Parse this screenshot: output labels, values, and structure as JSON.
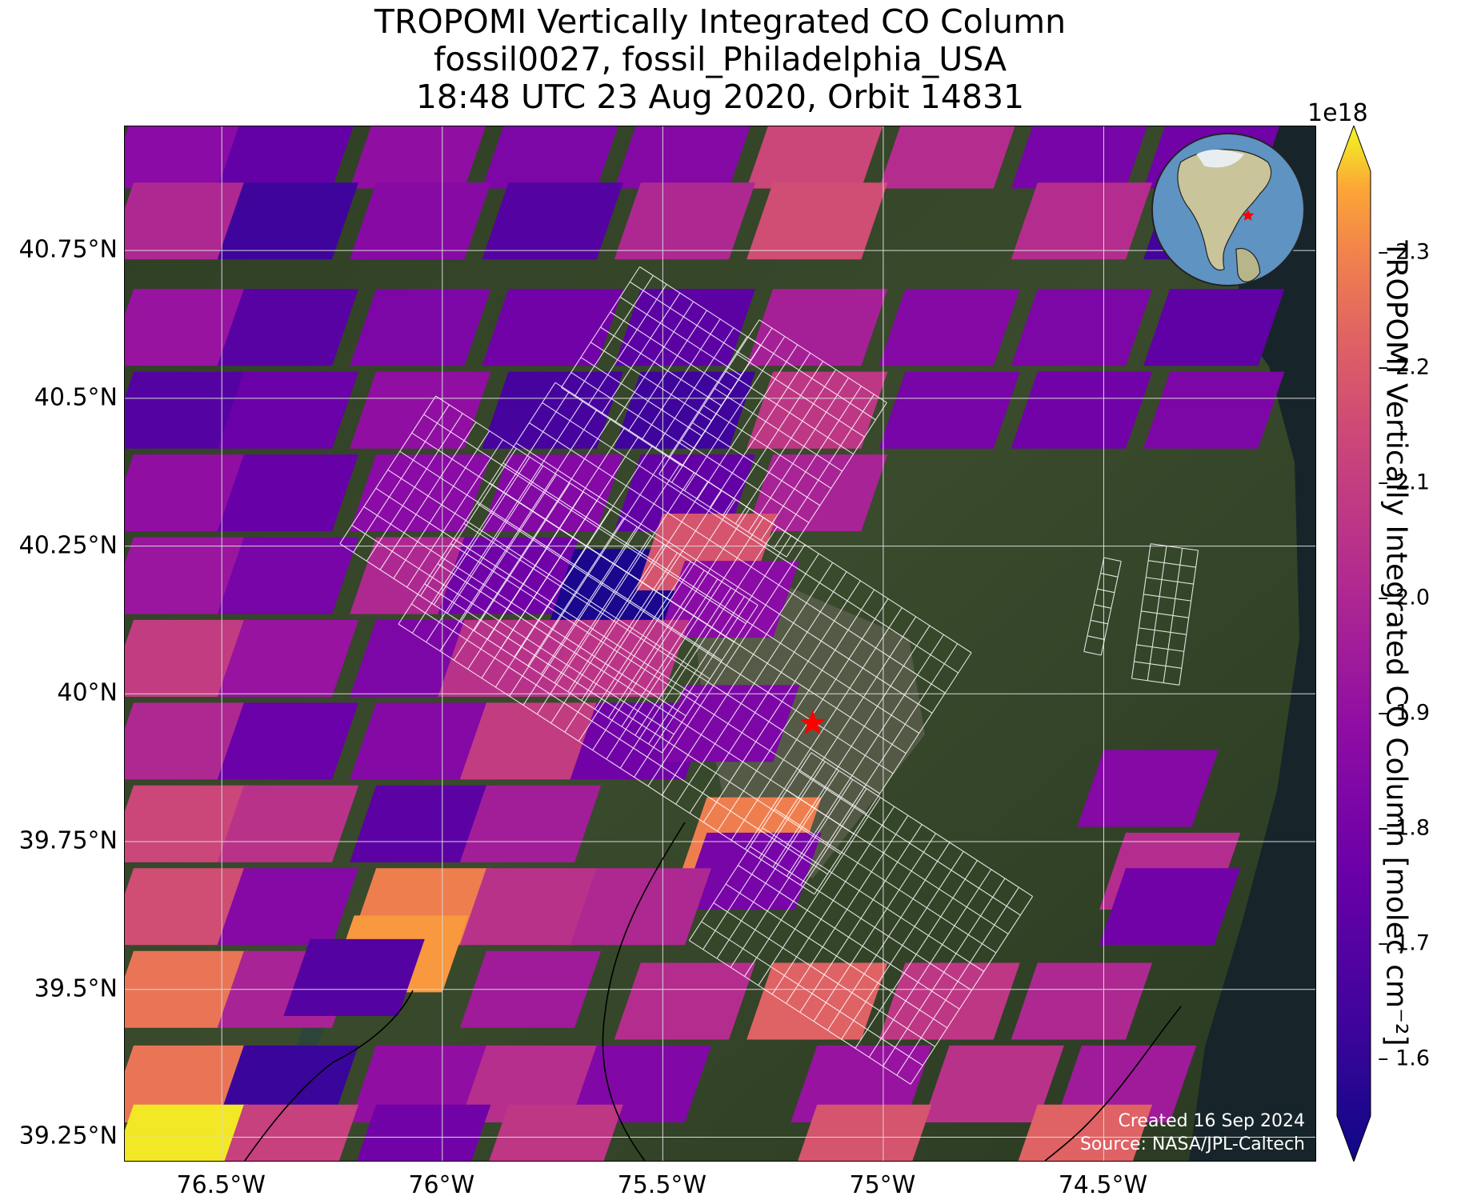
{
  "title": {
    "line1": "TROPOMI Vertically Integrated CO Column",
    "line2": "fossil0027, fossil_Philadelphia_USA",
    "line3": "18:48 UTC 23 Aug 2020, Orbit 14831"
  },
  "map": {
    "lat_ticks": [
      "40.75°N",
      "40.5°N",
      "40.25°N",
      "40°N",
      "39.75°N",
      "39.5°N",
      "39.25°N"
    ],
    "lon_ticks": [
      "76.5°W",
      "76°W",
      "75.5°W",
      "75°W",
      "74.5°W"
    ],
    "extent": {
      "lon_min": -76.72,
      "lon_max": -74.02,
      "lat_min": 39.21,
      "lat_max": 40.96
    },
    "target_marker": {
      "name": "fossil_Philadelphia_USA",
      "lon": -75.16,
      "lat": 39.95,
      "color": "#ff0000"
    },
    "grid": true,
    "basemap": "satellite imagery",
    "credit_line1": "Created 16 Sep 2024",
    "credit_line2": "Source: NASA/JPL-Caltech",
    "globe_inset": {
      "marker_color": "#ff0000",
      "content": "globe centered on North America with target star"
    }
  },
  "colorbar": {
    "exponent": "1e18",
    "label": "TROPOMI Vertically Integrated CO Column [molec cm⁻²]",
    "ticks": [
      "2.3",
      "2.2",
      "2.1",
      "2.0",
      "1.9",
      "1.8",
      "1.7",
      "1.6"
    ],
    "tick_values": [
      2.3,
      2.2,
      2.1,
      2.0,
      1.9,
      1.8,
      1.7,
      1.6
    ],
    "min": 1.55,
    "max": 2.37,
    "colormap": "plasma",
    "extend": "both"
  },
  "chart_data": {
    "type": "heatmap",
    "title": "TROPOMI Vertically Integrated CO Column",
    "subtitle": [
      "fossil0027, fossil_Philadelphia_USA",
      "18:48 UTC 23 Aug 2020, Orbit 14831"
    ],
    "xlabel": "",
    "ylabel": "",
    "x_ticks": [
      "76.5°W",
      "76°W",
      "75.5°W",
      "75°W",
      "74.5°W"
    ],
    "y_ticks": [
      "40.75°N",
      "40.5°N",
      "40.25°N",
      "40°N",
      "39.75°N",
      "39.5°N",
      "39.25°N"
    ],
    "xlim": [
      -76.72,
      -74.02
    ],
    "ylim": [
      39.21,
      40.96
    ],
    "color_range": [
      1.55,
      2.37
    ],
    "units": "molec cm⁻² ×1e18",
    "cells": [
      {
        "lon": -76.6,
        "lat": 40.92,
        "value": 1.88
      },
      {
        "lon": -76.35,
        "lat": 40.92,
        "value": 1.76
      },
      {
        "lon": -76.05,
        "lat": 40.92,
        "value": 1.9
      },
      {
        "lon": -75.75,
        "lat": 40.92,
        "value": 1.84
      },
      {
        "lon": -75.45,
        "lat": 40.92,
        "value": 1.86
      },
      {
        "lon": -75.15,
        "lat": 40.92,
        "value": 2.12
      },
      {
        "lon": -74.85,
        "lat": 40.92,
        "value": 2.02
      },
      {
        "lon": -74.55,
        "lat": 40.92,
        "value": 1.82
      },
      {
        "lon": -74.25,
        "lat": 40.92,
        "value": 1.8
      },
      {
        "lon": -76.6,
        "lat": 40.8,
        "value": 2.0
      },
      {
        "lon": -76.35,
        "lat": 40.8,
        "value": 1.66
      },
      {
        "lon": -76.05,
        "lat": 40.8,
        "value": 1.87
      },
      {
        "lon": -75.75,
        "lat": 40.8,
        "value": 1.72
      },
      {
        "lon": -75.45,
        "lat": 40.8,
        "value": 2.0
      },
      {
        "lon": -75.15,
        "lat": 40.8,
        "value": 2.14
      },
      {
        "lon": -74.55,
        "lat": 40.8,
        "value": 2.02
      },
      {
        "lon": -74.25,
        "lat": 40.8,
        "value": 1.67
      },
      {
        "lon": -76.6,
        "lat": 40.62,
        "value": 1.92
      },
      {
        "lon": -76.35,
        "lat": 40.62,
        "value": 1.73
      },
      {
        "lon": -76.05,
        "lat": 40.62,
        "value": 1.84
      },
      {
        "lon": -75.75,
        "lat": 40.62,
        "value": 1.8
      },
      {
        "lon": -75.45,
        "lat": 40.62,
        "value": 1.74
      },
      {
        "lon": -75.15,
        "lat": 40.62,
        "value": 1.97
      },
      {
        "lon": -74.85,
        "lat": 40.62,
        "value": 1.86
      },
      {
        "lon": -74.55,
        "lat": 40.62,
        "value": 1.84
      },
      {
        "lon": -74.25,
        "lat": 40.62,
        "value": 1.75
      },
      {
        "lon": -76.6,
        "lat": 40.48,
        "value": 1.72
      },
      {
        "lon": -76.35,
        "lat": 40.48,
        "value": 1.78
      },
      {
        "lon": -76.05,
        "lat": 40.48,
        "value": 1.9
      },
      {
        "lon": -75.75,
        "lat": 40.48,
        "value": 1.68
      },
      {
        "lon": -75.45,
        "lat": 40.48,
        "value": 1.66
      },
      {
        "lon": -75.15,
        "lat": 40.48,
        "value": 2.06
      },
      {
        "lon": -74.85,
        "lat": 40.48,
        "value": 1.82
      },
      {
        "lon": -74.55,
        "lat": 40.48,
        "value": 1.8
      },
      {
        "lon": -74.25,
        "lat": 40.48,
        "value": 1.84
      },
      {
        "lon": -76.6,
        "lat": 40.34,
        "value": 1.9
      },
      {
        "lon": -76.35,
        "lat": 40.34,
        "value": 1.77
      },
      {
        "lon": -76.05,
        "lat": 40.34,
        "value": 1.88
      },
      {
        "lon": -75.75,
        "lat": 40.34,
        "value": 1.86
      },
      {
        "lon": -75.45,
        "lat": 40.34,
        "value": 1.76
      },
      {
        "lon": -75.15,
        "lat": 40.34,
        "value": 1.98
      },
      {
        "lon": -76.6,
        "lat": 40.2,
        "value": 1.93
      },
      {
        "lon": -76.35,
        "lat": 40.2,
        "value": 1.82
      },
      {
        "lon": -76.05,
        "lat": 40.2,
        "value": 2.0
      },
      {
        "lon": -75.85,
        "lat": 40.2,
        "value": 1.8
      },
      {
        "lon": -75.6,
        "lat": 40.18,
        "value": 1.58
      },
      {
        "lon": -75.4,
        "lat": 40.24,
        "value": 2.16
      },
      {
        "lon": -75.35,
        "lat": 40.16,
        "value": 1.88
      },
      {
        "lon": -76.6,
        "lat": 40.06,
        "value": 2.08
      },
      {
        "lon": -76.35,
        "lat": 40.06,
        "value": 1.92
      },
      {
        "lon": -76.05,
        "lat": 40.06,
        "value": 1.84
      },
      {
        "lon": -75.85,
        "lat": 40.06,
        "value": 2.04
      },
      {
        "lon": -75.6,
        "lat": 40.06,
        "value": 2.05
      },
      {
        "lon": -76.6,
        "lat": 39.92,
        "value": 2.0
      },
      {
        "lon": -76.35,
        "lat": 39.92,
        "value": 1.78
      },
      {
        "lon": -76.05,
        "lat": 39.92,
        "value": 1.86
      },
      {
        "lon": -75.8,
        "lat": 39.92,
        "value": 2.08
      },
      {
        "lon": -75.55,
        "lat": 39.92,
        "value": 1.8
      },
      {
        "lon": -75.35,
        "lat": 39.95,
        "value": 1.84
      },
      {
        "lon": -76.6,
        "lat": 39.78,
        "value": 2.12
      },
      {
        "lon": -76.35,
        "lat": 39.78,
        "value": 2.04
      },
      {
        "lon": -76.05,
        "lat": 39.78,
        "value": 1.74
      },
      {
        "lon": -75.8,
        "lat": 39.78,
        "value": 1.96
      },
      {
        "lon": -75.3,
        "lat": 39.76,
        "value": 2.26
      },
      {
        "lon": -75.3,
        "lat": 39.7,
        "value": 1.82
      },
      {
        "lon": -76.6,
        "lat": 39.64,
        "value": 2.14
      },
      {
        "lon": -76.35,
        "lat": 39.64,
        "value": 1.86
      },
      {
        "lon": -76.05,
        "lat": 39.64,
        "value": 2.26
      },
      {
        "lon": -75.8,
        "lat": 39.64,
        "value": 2.04
      },
      {
        "lon": -75.55,
        "lat": 39.64,
        "value": 2.0
      },
      {
        "lon": -76.6,
        "lat": 39.5,
        "value": 2.24
      },
      {
        "lon": -76.35,
        "lat": 39.5,
        "value": 1.98
      },
      {
        "lon": -76.1,
        "lat": 39.56,
        "value": 2.3
      },
      {
        "lon": -76.2,
        "lat": 39.52,
        "value": 1.72
      },
      {
        "lon": -75.8,
        "lat": 39.5,
        "value": 1.95
      },
      {
        "lon": -75.45,
        "lat": 39.48,
        "value": 2.02
      },
      {
        "lon": -75.15,
        "lat": 39.48,
        "value": 2.2
      },
      {
        "lon": -74.85,
        "lat": 39.48,
        "value": 2.06
      },
      {
        "lon": -74.55,
        "lat": 39.48,
        "value": 2.0
      },
      {
        "lon": -76.6,
        "lat": 39.34,
        "value": 2.24
      },
      {
        "lon": -76.35,
        "lat": 39.34,
        "value": 1.65
      },
      {
        "lon": -76.05,
        "lat": 39.34,
        "value": 1.9
      },
      {
        "lon": -75.8,
        "lat": 39.34,
        "value": 2.03
      },
      {
        "lon": -75.55,
        "lat": 39.34,
        "value": 1.85
      },
      {
        "lon": -75.05,
        "lat": 39.34,
        "value": 1.92
      },
      {
        "lon": -74.75,
        "lat": 39.34,
        "value": 2.04
      },
      {
        "lon": -74.45,
        "lat": 39.34,
        "value": 1.95
      },
      {
        "lon": -76.6,
        "lat": 39.24,
        "value": 2.36
      },
      {
        "lon": -76.35,
        "lat": 39.24,
        "value": 2.1
      },
      {
        "lon": -76.05,
        "lat": 39.24,
        "value": 1.8
      },
      {
        "lon": -75.75,
        "lat": 39.24,
        "value": 2.06
      },
      {
        "lon": -75.05,
        "lat": 39.24,
        "value": 2.16
      },
      {
        "lon": -74.55,
        "lat": 39.24,
        "value": 2.2
      },
      {
        "lon": -74.4,
        "lat": 39.84,
        "value": 1.86
      },
      {
        "lon": -74.35,
        "lat": 39.7,
        "value": 2.02
      },
      {
        "lon": -74.35,
        "lat": 39.64,
        "value": 1.8
      }
    ]
  }
}
